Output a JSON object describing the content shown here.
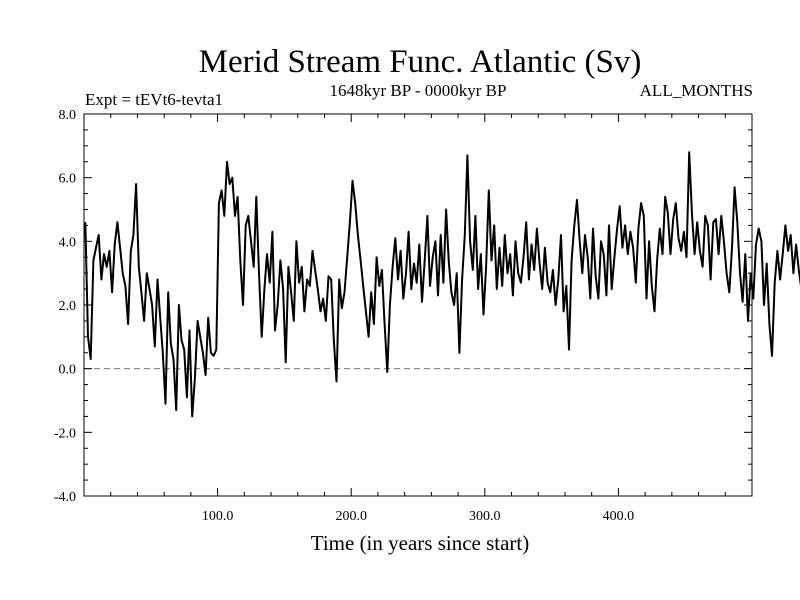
{
  "chart_data": {
    "type": "line",
    "title": "Merid Stream Func. Atlantic (Sv)",
    "subtitle": "1648kyr BP - 0000kyr BP",
    "experiment_label": "Expt = tEVt6-tevta1",
    "period_label": "ALL_MONTHS",
    "xlabel": "Time (in years since start)",
    "ylabel": "",
    "xlim": [
      0,
      500
    ],
    "ylim": [
      -4.0,
      8.0
    ],
    "x_ticks": [
      100,
      200,
      300,
      400
    ],
    "x_tick_labels": [
      "100.0",
      "200.0",
      "300.0",
      "400.0"
    ],
    "y_ticks": [
      -4,
      -2,
      0,
      2,
      4,
      6,
      8
    ],
    "y_tick_labels": [
      "-4.0",
      "-2.0",
      "0.0",
      "2.0",
      "4.0",
      "6.0",
      "8.0"
    ],
    "reference_line": {
      "y": 0.0,
      "style": "dashed"
    },
    "series": [
      {
        "name": "Meridional stream function",
        "x_start": 1,
        "x_step": 2,
        "values": [
          4.6,
          1.0,
          0.3,
          3.4,
          3.8,
          4.2,
          2.8,
          3.6,
          3.2,
          3.7,
          2.4,
          3.9,
          4.6,
          3.8,
          3.0,
          2.6,
          1.4,
          3.7,
          4.2,
          5.8,
          3.2,
          2.4,
          1.5,
          3.0,
          2.5,
          2.0,
          0.7,
          2.8,
          1.6,
          0.5,
          -1.1,
          2.4,
          0.8,
          0.3,
          -1.3,
          2.0,
          0.9,
          0.6,
          -0.9,
          1.2,
          -1.5,
          -0.3,
          1.5,
          1.0,
          0.5,
          -0.2,
          1.6,
          0.5,
          0.4,
          0.6,
          5.2,
          5.6,
          4.8,
          6.5,
          5.8,
          6.0,
          4.8,
          5.4,
          3.4,
          2.0,
          4.5,
          4.8,
          4.0,
          3.2,
          5.4,
          3.0,
          1.0,
          2.5,
          3.6,
          2.7,
          4.3,
          1.2,
          2.0,
          3.4,
          2.5,
          0.2,
          3.2,
          2.4,
          1.5,
          4.0,
          2.7,
          3.2,
          1.8,
          2.8,
          2.6,
          3.7,
          3.1,
          2.5,
          1.8,
          2.2,
          1.5,
          2.9,
          2.8,
          0.9,
          -0.4,
          2.8,
          1.9,
          2.4,
          3.5,
          4.6,
          5.9,
          5.2,
          4.2,
          3.4,
          2.6,
          1.8,
          1.0,
          2.4,
          1.4,
          3.5,
          2.6,
          3.1,
          1.4,
          -0.1,
          2.0,
          3.2,
          4.1,
          2.8,
          3.7,
          2.2,
          3.0,
          4.3,
          2.5,
          3.3,
          2.7,
          3.9,
          2.1,
          3.4,
          4.8,
          2.6,
          3.5,
          4.0,
          2.3,
          4.2,
          2.7,
          5.0,
          3.4,
          2.4,
          2.0,
          3.0,
          0.5,
          2.8,
          4.2,
          6.7,
          4.0,
          3.1,
          4.8,
          2.5,
          3.6,
          1.7,
          3.2,
          5.6,
          3.4,
          4.5,
          2.5,
          3.8,
          2.6,
          4.2,
          3.0,
          3.6,
          2.3,
          4.0,
          3.0,
          2.7,
          3.5,
          4.6,
          2.8,
          3.9,
          3.1,
          4.4,
          3.3,
          2.5,
          3.8,
          2.7,
          2.4,
          3.1,
          2.0,
          2.8,
          4.2,
          1.8,
          2.6,
          0.6,
          3.4,
          4.5,
          5.3,
          4.0,
          3.0,
          4.2,
          3.5,
          2.2,
          4.4,
          2.9,
          2.2,
          4.0,
          3.6,
          2.3,
          4.5,
          2.5,
          3.5,
          4.4,
          5.1,
          3.8,
          4.5,
          3.6,
          4.3,
          3.8,
          2.7,
          4.4,
          5.2,
          4.8,
          2.2,
          4.0,
          2.6,
          1.8,
          3.4,
          4.4,
          3.6,
          5.4,
          4.9,
          3.6,
          4.7,
          5.2,
          4.1,
          3.7,
          4.3,
          3.5,
          6.8,
          4.9,
          3.6,
          4.6,
          3.7,
          3.2,
          4.8,
          4.5,
          2.8,
          4.6,
          4.7,
          3.6,
          4.8,
          4.0,
          3.0,
          2.4,
          3.8,
          5.7,
          4.6,
          3.0,
          2.1,
          3.6,
          1.5,
          3.0,
          2.2,
          3.9,
          4.4,
          4.0,
          2.0,
          3.3,
          1.4,
          0.4,
          2.7,
          3.7,
          2.8,
          3.6,
          4.5,
          3.7,
          4.2,
          3.0,
          3.9,
          3.1,
          2.5,
          3.5,
          4.6,
          3.6,
          3.3,
          2.7,
          1.8,
          3.7,
          2.9,
          3.4,
          4.0,
          4.9,
          3.4,
          4.2,
          4.5,
          3.8,
          6.4,
          5.3,
          3.7,
          4.5,
          4.1,
          3.6,
          5.0,
          4.6,
          4.2,
          6.8,
          4.4,
          3.3,
          4.8,
          3.7,
          3.3,
          4.0,
          4.3,
          5.3,
          3.6,
          5.6,
          3.0,
          3.8,
          3.2,
          4.4,
          4.5,
          2.3,
          3.4,
          2.1,
          4.7,
          4.9,
          3.6,
          4.3,
          3.6,
          4.1,
          4.8,
          3.4,
          4.9,
          4.0,
          3.8,
          3.3,
          4.4,
          2.7,
          3.6,
          0.6,
          2.8,
          3.5,
          3.0,
          2.2,
          3.6,
          4.3,
          2.0,
          5.3,
          3.6,
          1.6,
          2.8,
          3.6,
          3.5,
          3.0,
          2.4,
          2.6,
          1.4,
          3.6,
          3.4,
          4.2,
          2.6,
          3.1,
          3.7,
          2.7,
          3.4,
          2.6,
          1.2,
          1.9,
          2.7,
          1.2,
          0.3,
          0.1,
          -0.5,
          -2.0,
          -1.1,
          0.6,
          2.2,
          3.1,
          4.0,
          3.1,
          2.2,
          3.6,
          3.0,
          4.2,
          3.3,
          4.4,
          2.4,
          3.6,
          4.8,
          3.0,
          3.9,
          2.3,
          4.4,
          3.3,
          1.3,
          2.4,
          3.0,
          1.2,
          0.6,
          2.6,
          1.7,
          1.3,
          1.8,
          0.8,
          2.7,
          1.3,
          3.4,
          2.8,
          0.1,
          2.0,
          2.8,
          0.9,
          -0.4,
          1.2,
          2.0,
          1.3,
          2.2,
          1.6,
          1.8,
          1.1,
          0.9,
          0.6,
          1.4,
          2.1,
          0.5,
          1.9,
          2.9,
          3.6,
          2.4,
          4.4,
          5.5,
          5.6
        ]
      }
    ]
  }
}
